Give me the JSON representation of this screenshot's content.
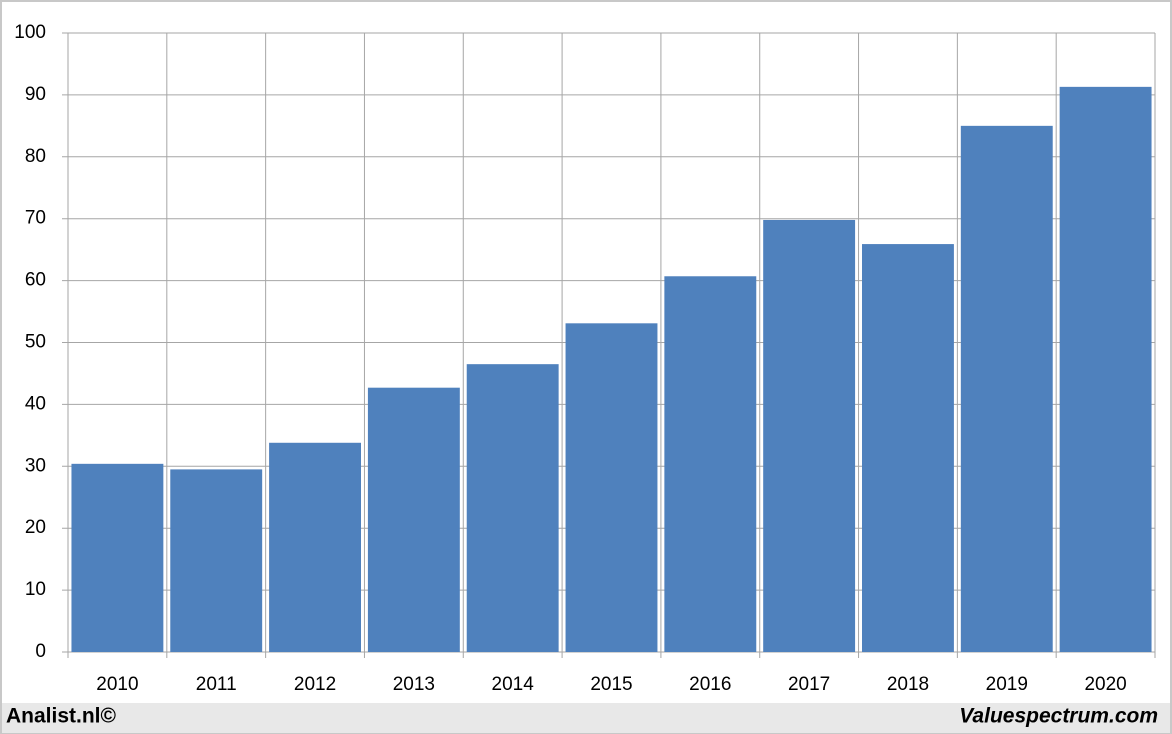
{
  "chart_data": {
    "type": "bar",
    "categories": [
      "2010",
      "2011",
      "2012",
      "2013",
      "2014",
      "2015",
      "2016",
      "2017",
      "2018",
      "2019",
      "2020"
    ],
    "values": [
      30.4,
      29.5,
      33.8,
      42.7,
      46.5,
      53.1,
      60.7,
      69.8,
      65.9,
      85.0,
      91.3
    ],
    "color": "#4f81bd",
    "ylim": [
      0,
      100
    ],
    "yticks": [
      0,
      10,
      20,
      30,
      40,
      50,
      60,
      70,
      80,
      90,
      100
    ],
    "grid": true,
    "annotations": [
      "Analist.nl©",
      "Valuespectrum.com"
    ]
  }
}
